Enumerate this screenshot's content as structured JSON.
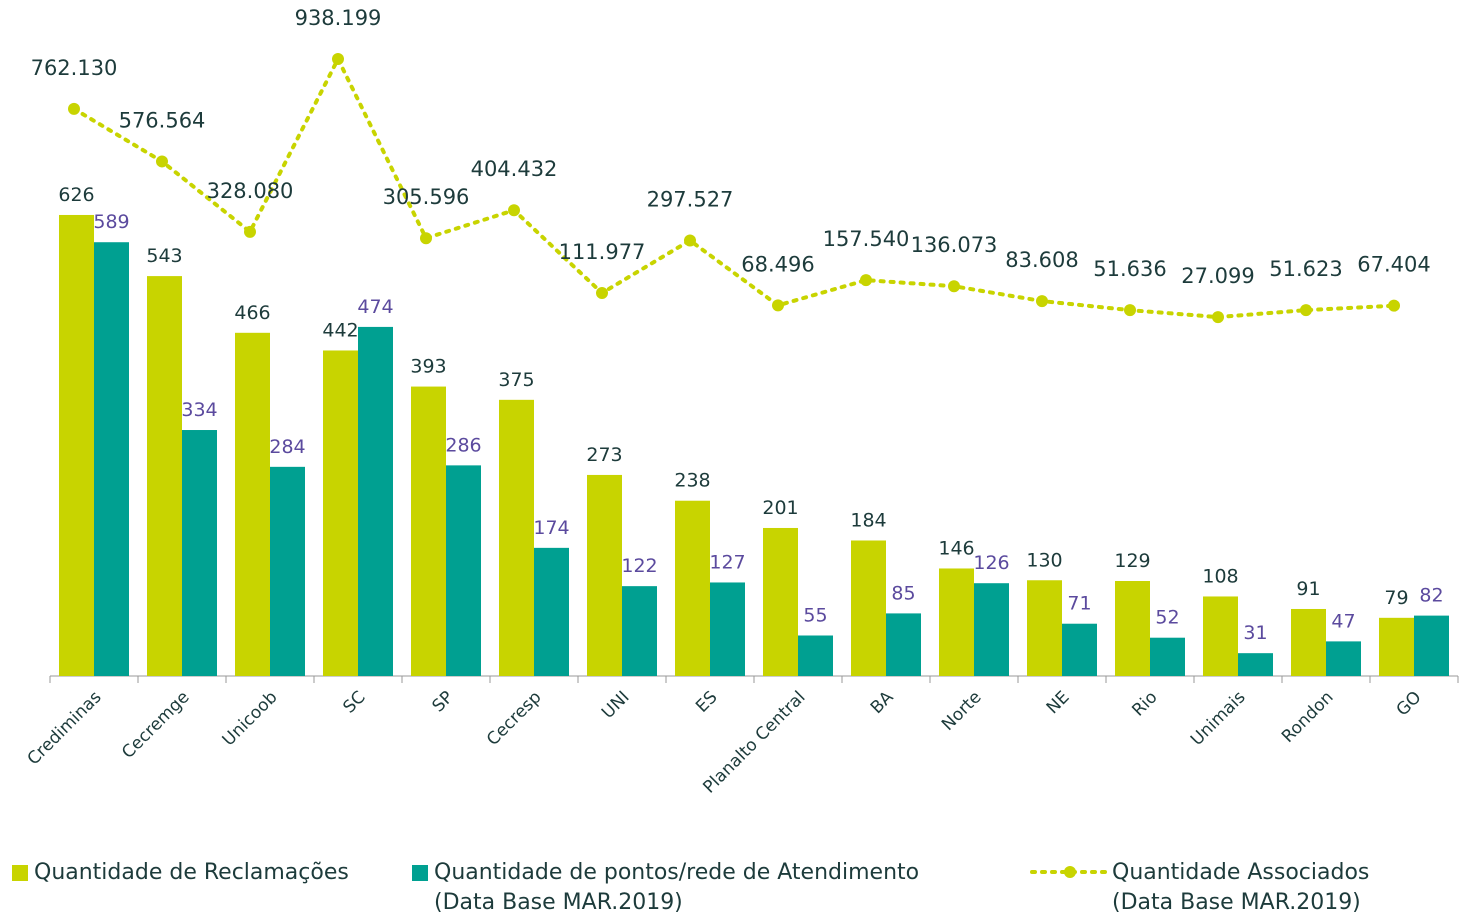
{
  "chart_data": {
    "type": "bar",
    "categories": [
      "Crediminas",
      "Cecremge",
      "Unicoob",
      "SC",
      "SP",
      "Cecresp",
      "UNI",
      "ES",
      "Planalto Central",
      "BA",
      "Norte",
      "NE",
      "Rio",
      "Unimais",
      "Rondon",
      "GO"
    ],
    "series": [
      {
        "name": "Quantidade de Reclamações",
        "color": "#c8d400",
        "label_color": "#1d3b3b",
        "type": "bar",
        "values": [
          626,
          543,
          466,
          442,
          393,
          375,
          273,
          238,
          201,
          184,
          146,
          130,
          129,
          108,
          91,
          79
        ]
      },
      {
        "name": "Quantidade de pontos/rede de Atendimento\n(Data Base MAR.2019)",
        "color": "#00a091",
        "label_color": "#5b4a9e",
        "type": "bar",
        "values": [
          589,
          334,
          284,
          474,
          286,
          174,
          122,
          127,
          55,
          85,
          126,
          71,
          52,
          31,
          47,
          82
        ]
      },
      {
        "name": "Quantidade Associados\n(Data Base MAR.2019)",
        "color": "#c8d400",
        "label_color": "#1d3b3b",
        "type": "line",
        "axis": "y2",
        "dotted": true,
        "values": [
          762130,
          576564,
          328080,
          938199,
          305596,
          404432,
          111977,
          297527,
          68496,
          157540,
          136073,
          83608,
          51636,
          27099,
          51623,
          67404
        ],
        "value_labels": [
          "762.130",
          "576.564",
          "328.080",
          "938.199",
          "305.596",
          "404.432",
          "111.977",
          "297.527",
          "68.496",
          "157.540",
          "136.073",
          "83.608",
          "51.636",
          "27.099",
          "51.623",
          "67.404"
        ]
      }
    ],
    "ylim": [
      0,
      850
    ],
    "y2lim": [
      -1240000,
      970000
    ]
  }
}
